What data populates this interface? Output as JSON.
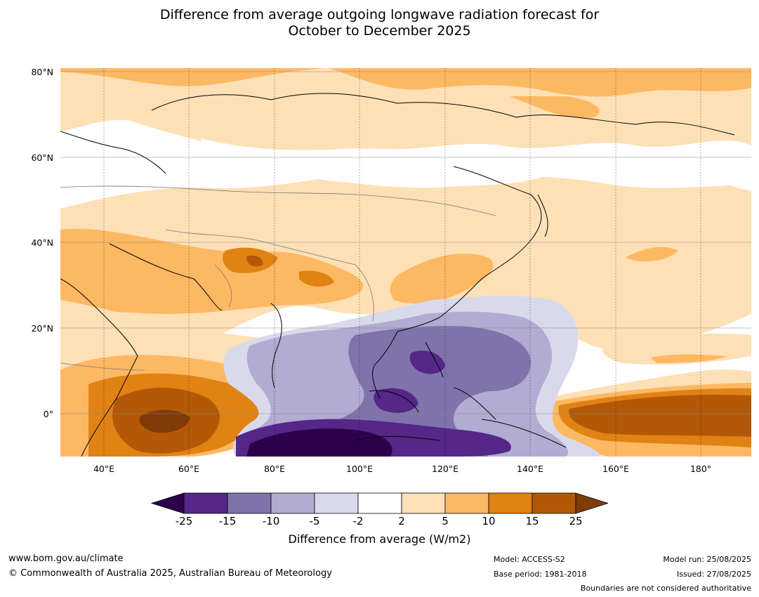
{
  "title_line1": "Difference from average outgoing longwave radiation forecast for",
  "title_line2": "October to December 2025",
  "lat_labels": [
    "80°N",
    "60°N",
    "40°N",
    "20°N",
    "0°"
  ],
  "lon_labels": [
    "40°E",
    "60°E",
    "80°E",
    "100°E",
    "120°E",
    "140°E",
    "160°E",
    "180°"
  ],
  "colorbar": {
    "ticks": [
      "-25",
      "-15",
      "-10",
      "-5",
      "-2",
      "2",
      "5",
      "10",
      "15",
      "25"
    ],
    "label": "Difference from average (W/m2)",
    "colors": {
      "below_min": "#2d004b",
      "c1": "#542788",
      "c2": "#8073ac",
      "c3": "#b2abd2",
      "c4": "#d8daeb",
      "c5": "#ffffff",
      "c6": "#fee0b6",
      "c7": "#fdb863",
      "c8": "#e08214",
      "c9": "#b35806",
      "above_max": "#7f3b08"
    }
  },
  "footer": {
    "url": "www.bom.gov.au/climate",
    "copyright": "© Commonwealth of Australia 2025, Australian Bureau of Meteorology",
    "model": "Model: ACCESS-S2",
    "base_period": "Base period: 1981-2018",
    "model_run": "Model run: 25/08/2025",
    "issued": "Issued: 27/08/2025",
    "disclaimer": "Boundaries are not considered authoritative"
  }
}
